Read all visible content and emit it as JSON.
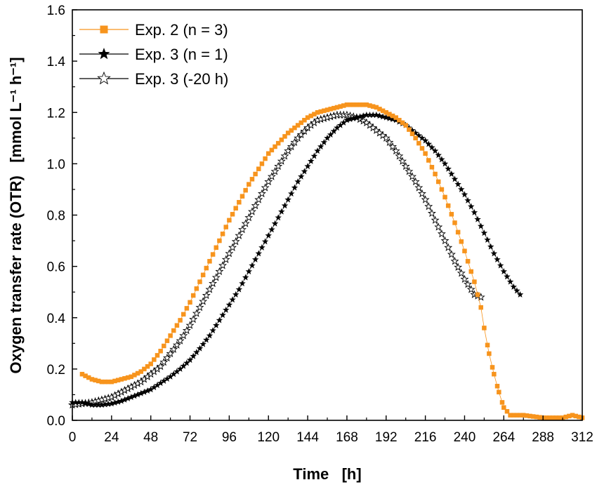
{
  "chart_data": {
    "type": "line",
    "title": "",
    "xlabel": "Time   [h]",
    "ylabel": "Oxygen transfer rate (OTR)   [mmol L⁻¹ h⁻¹]",
    "xlim": [
      0,
      312
    ],
    "ylim": [
      0,
      1.6
    ],
    "xticks": [
      0,
      24,
      48,
      72,
      96,
      120,
      144,
      168,
      192,
      216,
      240,
      264,
      288,
      312
    ],
    "yticks": [
      0.0,
      0.2,
      0.4,
      0.6,
      0.8,
      1.0,
      1.2,
      1.4,
      1.6
    ],
    "ytick_labels": [
      "0.0",
      "0.2",
      "0.4",
      "0.6",
      "0.8",
      "1.0",
      "1.2",
      "1.4",
      "1.6"
    ],
    "grid": false,
    "legend_position": "top-left",
    "series": [
      {
        "name": "Exp. 2 (n = 3)",
        "color": "#f7941d",
        "marker": "square",
        "points": [
          [
            6,
            0.18
          ],
          [
            12,
            0.16
          ],
          [
            18,
            0.15
          ],
          [
            24,
            0.15
          ],
          [
            30,
            0.16
          ],
          [
            36,
            0.17
          ],
          [
            42,
            0.19
          ],
          [
            48,
            0.22
          ],
          [
            54,
            0.27
          ],
          [
            60,
            0.33
          ],
          [
            66,
            0.39
          ],
          [
            72,
            0.46
          ],
          [
            78,
            0.54
          ],
          [
            84,
            0.62
          ],
          [
            90,
            0.7
          ],
          [
            96,
            0.78
          ],
          [
            102,
            0.85
          ],
          [
            108,
            0.92
          ],
          [
            114,
            0.98
          ],
          [
            120,
            1.04
          ],
          [
            126,
            1.08
          ],
          [
            132,
            1.12
          ],
          [
            138,
            1.15
          ],
          [
            144,
            1.18
          ],
          [
            150,
            1.2
          ],
          [
            156,
            1.21
          ],
          [
            162,
            1.22
          ],
          [
            168,
            1.23
          ],
          [
            174,
            1.23
          ],
          [
            180,
            1.23
          ],
          [
            186,
            1.22
          ],
          [
            192,
            1.2
          ],
          [
            198,
            1.18
          ],
          [
            204,
            1.15
          ],
          [
            210,
            1.1
          ],
          [
            216,
            1.04
          ],
          [
            222,
            0.96
          ],
          [
            228,
            0.87
          ],
          [
            234,
            0.77
          ],
          [
            240,
            0.66
          ],
          [
            246,
            0.54
          ],
          [
            250,
            0.44
          ],
          [
            252,
            0.36
          ],
          [
            255,
            0.26
          ],
          [
            258,
            0.18
          ],
          [
            261,
            0.11
          ],
          [
            264,
            0.05
          ],
          [
            268,
            0.02
          ],
          [
            276,
            0.02
          ],
          [
            288,
            0.01
          ],
          [
            300,
            0.01
          ],
          [
            306,
            0.02
          ],
          [
            312,
            0.01
          ]
        ]
      },
      {
        "name": "Exp. 3 (n = 1)",
        "color": "#000000",
        "marker": "star-filled",
        "points": [
          [
            0,
            0.07
          ],
          [
            6,
            0.07
          ],
          [
            12,
            0.06
          ],
          [
            18,
            0.06
          ],
          [
            24,
            0.065
          ],
          [
            30,
            0.075
          ],
          [
            36,
            0.09
          ],
          [
            42,
            0.105
          ],
          [
            48,
            0.12
          ],
          [
            54,
            0.145
          ],
          [
            60,
            0.17
          ],
          [
            66,
            0.2
          ],
          [
            72,
            0.235
          ],
          [
            78,
            0.28
          ],
          [
            84,
            0.33
          ],
          [
            90,
            0.39
          ],
          [
            96,
            0.45
          ],
          [
            102,
            0.51
          ],
          [
            108,
            0.58
          ],
          [
            114,
            0.65
          ],
          [
            120,
            0.72
          ],
          [
            126,
            0.79
          ],
          [
            132,
            0.86
          ],
          [
            138,
            0.93
          ],
          [
            144,
            0.99
          ],
          [
            150,
            1.05
          ],
          [
            156,
            1.1
          ],
          [
            162,
            1.14
          ],
          [
            168,
            1.17
          ],
          [
            174,
            1.18
          ],
          [
            180,
            1.19
          ],
          [
            186,
            1.19
          ],
          [
            192,
            1.18
          ],
          [
            198,
            1.17
          ],
          [
            204,
            1.15
          ],
          [
            210,
            1.12
          ],
          [
            216,
            1.09
          ],
          [
            222,
            1.05
          ],
          [
            228,
            1.0
          ],
          [
            234,
            0.94
          ],
          [
            240,
            0.88
          ],
          [
            246,
            0.81
          ],
          [
            252,
            0.73
          ],
          [
            258,
            0.65
          ],
          [
            264,
            0.58
          ],
          [
            270,
            0.52
          ],
          [
            274,
            0.49
          ]
        ]
      },
      {
        "name": "Exp. 3 (-20 h)",
        "color": "#000000",
        "marker": "star-open",
        "points": [
          [
            0,
            0.06
          ],
          [
            6,
            0.065
          ],
          [
            12,
            0.07
          ],
          [
            18,
            0.08
          ],
          [
            24,
            0.09
          ],
          [
            30,
            0.11
          ],
          [
            36,
            0.13
          ],
          [
            42,
            0.15
          ],
          [
            48,
            0.18
          ],
          [
            54,
            0.21
          ],
          [
            60,
            0.26
          ],
          [
            66,
            0.31
          ],
          [
            72,
            0.37
          ],
          [
            78,
            0.44
          ],
          [
            84,
            0.51
          ],
          [
            90,
            0.58
          ],
          [
            96,
            0.65
          ],
          [
            102,
            0.72
          ],
          [
            108,
            0.79
          ],
          [
            114,
            0.86
          ],
          [
            120,
            0.93
          ],
          [
            126,
            0.99
          ],
          [
            132,
            1.05
          ],
          [
            138,
            1.1
          ],
          [
            144,
            1.14
          ],
          [
            150,
            1.17
          ],
          [
            156,
            1.18
          ],
          [
            162,
            1.19
          ],
          [
            168,
            1.19
          ],
          [
            174,
            1.18
          ],
          [
            180,
            1.16
          ],
          [
            186,
            1.13
          ],
          [
            192,
            1.1
          ],
          [
            198,
            1.05
          ],
          [
            204,
            0.99
          ],
          [
            210,
            0.93
          ],
          [
            216,
            0.86
          ],
          [
            222,
            0.78
          ],
          [
            228,
            0.7
          ],
          [
            234,
            0.62
          ],
          [
            240,
            0.55
          ],
          [
            246,
            0.49
          ],
          [
            250,
            0.48
          ]
        ]
      }
    ]
  }
}
